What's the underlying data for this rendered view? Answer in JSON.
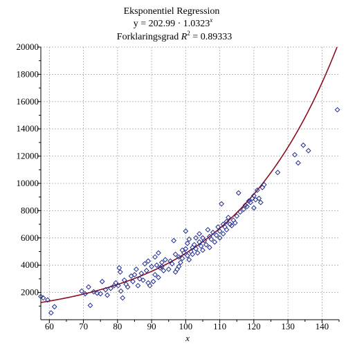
{
  "chart_data": {
    "type": "scatter",
    "title": {
      "line1": "Eksponentiel Regression",
      "line2_prefix": "y = 202.99 · 1.0323",
      "line2_sup": "x",
      "line3_prefix": "Forklaringsgrad ",
      "line3_r": "R",
      "line3_sup": "2",
      "line3_suffix": " = 0.89333"
    },
    "xlabel": "x",
    "ylabel": "",
    "xlim": [
      57.5,
      145
    ],
    "ylim": [
      0,
      20000
    ],
    "xticks": [
      60,
      70,
      80,
      90,
      100,
      110,
      120,
      130,
      140
    ],
    "yticks": [
      2000,
      4000,
      6000,
      8000,
      10000,
      12000,
      14000,
      16000,
      18000,
      20000
    ],
    "grid": true,
    "colors": {
      "points": "#1f2c8f",
      "curve": "#8b0d1e",
      "grid": "#a9a9a9"
    },
    "regression": {
      "a": 202.99,
      "b": 1.0323
    },
    "points": [
      [
        57.5,
        1700
      ],
      [
        58.2,
        1600
      ],
      [
        59.5,
        1450
      ],
      [
        60.5,
        500
      ],
      [
        61.5,
        950
      ],
      [
        69.5,
        2100
      ],
      [
        70.5,
        1900
      ],
      [
        71.5,
        2400
      ],
      [
        72,
        1050
      ],
      [
        73,
        2050
      ],
      [
        74,
        1950
      ],
      [
        75,
        1900
      ],
      [
        75.5,
        2800
      ],
      [
        76.5,
        2200
      ],
      [
        77,
        1800
      ],
      [
        78,
        2300
      ],
      [
        79,
        2500
      ],
      [
        79.5,
        2700
      ],
      [
        80.2,
        2500
      ],
      [
        80.5,
        3800
      ],
      [
        80.8,
        3500
      ],
      [
        81,
        2100
      ],
      [
        81.5,
        1600
      ],
      [
        82,
        2900
      ],
      [
        82.5,
        2600
      ],
      [
        83,
        2400
      ],
      [
        84,
        3200
      ],
      [
        84.5,
        2800
      ],
      [
        85,
        3300
      ],
      [
        85.5,
        3700
      ],
      [
        86,
        2500
      ],
      [
        86.5,
        3000
      ],
      [
        87,
        3400
      ],
      [
        87.5,
        2900
      ],
      [
        88,
        4100
      ],
      [
        88.5,
        3600
      ],
      [
        89,
        4300
      ],
      [
        89,
        2700
      ],
      [
        89.5,
        2500
      ],
      [
        90,
        3900
      ],
      [
        90.5,
        2800
      ],
      [
        91,
        4600
      ],
      [
        91,
        3300
      ],
      [
        91.5,
        4000
      ],
      [
        92,
        4900
      ],
      [
        92,
        3100
      ],
      [
        92.5,
        3800
      ],
      [
        93,
        4200
      ],
      [
        93,
        3900
      ],
      [
        93.5,
        3600
      ],
      [
        94,
        4400
      ],
      [
        95,
        3700
      ],
      [
        95.5,
        4300
      ],
      [
        96,
        4100
      ],
      [
        96.5,
        5800
      ],
      [
        97,
        3500
      ],
      [
        97,
        4800
      ],
      [
        97.5,
        3700
      ],
      [
        98,
        4600
      ],
      [
        98,
        3900
      ],
      [
        98.5,
        4200
      ],
      [
        99,
        5100
      ],
      [
        99,
        4500
      ],
      [
        99.5,
        4900
      ],
      [
        100,
        6500
      ],
      [
        100,
        5200
      ],
      [
        100.5,
        4700
      ],
      [
        100.5,
        5600
      ],
      [
        101,
        4400
      ],
      [
        101,
        5900
      ],
      [
        101.5,
        5000
      ],
      [
        102,
        5300
      ],
      [
        102,
        4800
      ],
      [
        102.5,
        5500
      ],
      [
        103,
        6000
      ],
      [
        103,
        5200
      ],
      [
        103.5,
        4900
      ],
      [
        104,
        5700
      ],
      [
        104,
        6300
      ],
      [
        104.5,
        5400
      ],
      [
        105,
        5100
      ],
      [
        105,
        6000
      ],
      [
        105.5,
        5800
      ],
      [
        106,
        5500
      ],
      [
        106.5,
        6600
      ],
      [
        107,
        5300
      ],
      [
        107,
        6100
      ],
      [
        107.5,
        5900
      ],
      [
        108,
        6400
      ],
      [
        108.5,
        5700
      ],
      [
        109,
        6200
      ],
      [
        109.5,
        6800
      ],
      [
        110,
        6500
      ],
      [
        110,
        6000
      ],
      [
        110.5,
        8500
      ],
      [
        111,
        7000
      ],
      [
        111,
        6300
      ],
      [
        111.5,
        6800
      ],
      [
        112,
        7200
      ],
      [
        112,
        6600
      ],
      [
        112.5,
        7500
      ],
      [
        113,
        7000
      ],
      [
        113.5,
        6900
      ],
      [
        114,
        7300
      ],
      [
        114.5,
        7100
      ],
      [
        115,
        7600
      ],
      [
        115.5,
        9300
      ],
      [
        116,
        7900
      ],
      [
        117,
        8100
      ],
      [
        117.5,
        8400
      ],
      [
        118,
        8300
      ],
      [
        118.5,
        8700
      ],
      [
        119,
        8600
      ],
      [
        119.5,
        8900
      ],
      [
        120,
        8200
      ],
      [
        120,
        9100
      ],
      [
        120.5,
        8800
      ],
      [
        121,
        9500
      ],
      [
        121.5,
        8900
      ],
      [
        122,
        8600
      ],
      [
        122.5,
        9700
      ],
      [
        123,
        9900
      ],
      [
        127,
        10800
      ],
      [
        132,
        12100
      ],
      [
        133,
        11500
      ],
      [
        134.5,
        12800
      ],
      [
        136,
        12400
      ],
      [
        144.5,
        15400
      ]
    ]
  }
}
